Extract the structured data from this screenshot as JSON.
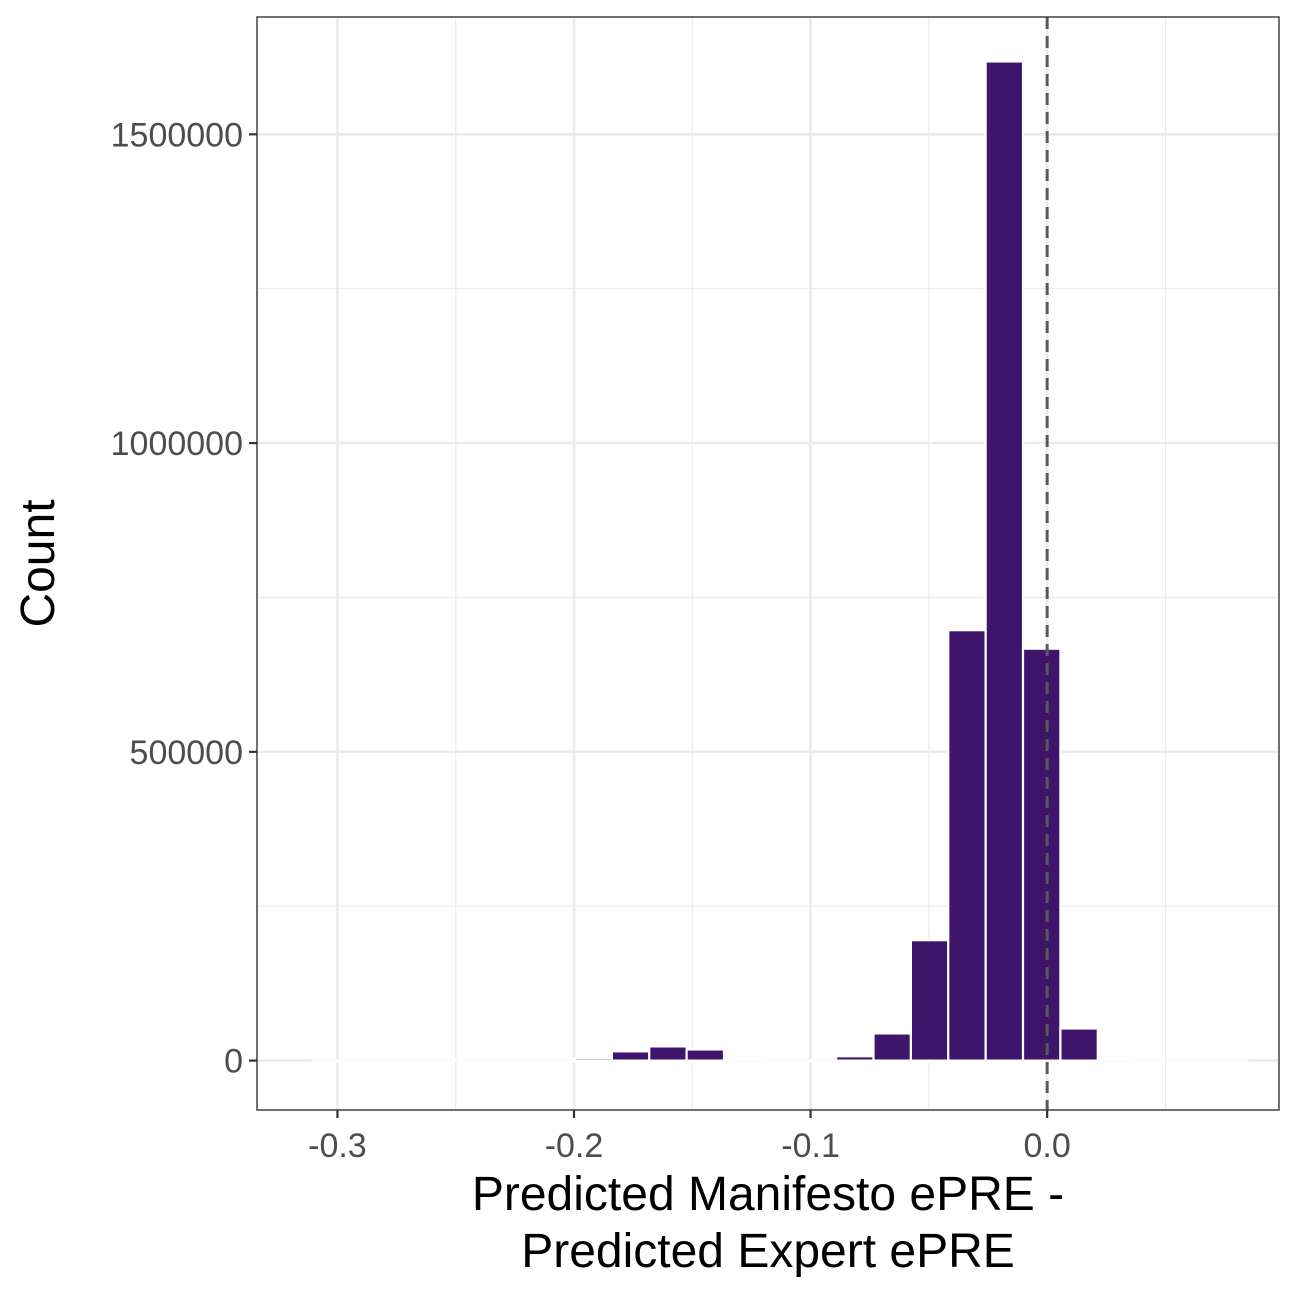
{
  "chart_data": {
    "type": "bar",
    "title": "",
    "xlabel_lines": [
      "Predicted Manifesto ePRE -",
      "Predicted Expert ePRE"
    ],
    "ylabel": "Count",
    "xlim": [
      -0.334,
      0.098
    ],
    "ylim": [
      -80000,
      1690000
    ],
    "x_ticks": [
      -0.3,
      -0.2,
      -0.1,
      0.0
    ],
    "x_tick_labels": [
      "-0.3",
      "-0.2",
      "-0.1",
      "0.0"
    ],
    "y_ticks": [
      0,
      500000,
      1000000,
      1500000
    ],
    "y_tick_labels": [
      "0",
      "500000",
      "1000000",
      "1500000"
    ],
    "x_minor_ticks": [
      -0.25,
      -0.15,
      -0.05,
      0.05
    ],
    "y_minor_ticks": [
      250000,
      750000,
      1250000
    ],
    "bin_width": 0.0158,
    "bins": [
      {
        "x": -0.3025,
        "count": 0
      },
      {
        "x": -0.2867,
        "count": 0
      },
      {
        "x": -0.2709,
        "count": 0
      },
      {
        "x": -0.2551,
        "count": 0
      },
      {
        "x": -0.2393,
        "count": 0
      },
      {
        "x": -0.2235,
        "count": 0
      },
      {
        "x": -0.2077,
        "count": 0
      },
      {
        "x": -0.1919,
        "count": 4000
      },
      {
        "x": -0.1761,
        "count": 15000
      },
      {
        "x": -0.1603,
        "count": 23000
      },
      {
        "x": -0.1445,
        "count": 18000
      },
      {
        "x": -0.1287,
        "count": 3000
      },
      {
        "x": -0.1129,
        "count": 0
      },
      {
        "x": -0.0971,
        "count": 0
      },
      {
        "x": -0.0813,
        "count": 7000
      },
      {
        "x": -0.0655,
        "count": 44000
      },
      {
        "x": -0.0497,
        "count": 195000
      },
      {
        "x": -0.0339,
        "count": 697000
      },
      {
        "x": -0.0181,
        "count": 1618000
      },
      {
        "x": -0.0023,
        "count": 667000
      },
      {
        "x": 0.0135,
        "count": 52000
      },
      {
        "x": 0.0293,
        "count": 1000
      },
      {
        "x": 0.0451,
        "count": 0
      },
      {
        "x": 0.0609,
        "count": 0
      },
      {
        "x": 0.0767,
        "count": 0
      }
    ],
    "vline": {
      "x": 0.0,
      "style": "dashed",
      "color": "#595959"
    },
    "bar_color": "#3f146b",
    "bar_outline": "#ffffff",
    "grid": true,
    "background": "#ffffff",
    "grid_color": "#ebebeb",
    "panel_border": "#333333",
    "legend": "none"
  }
}
